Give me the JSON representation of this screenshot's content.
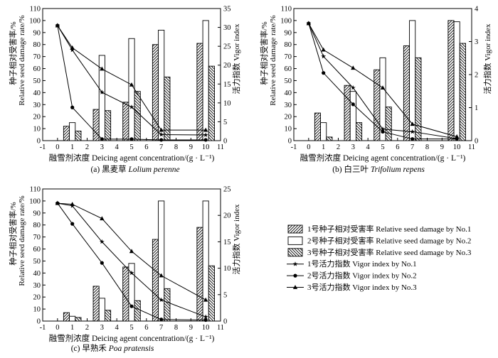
{
  "chart_data": [
    {
      "type": "bar",
      "id": "a",
      "caption": "(a) 黑麦草 Lolium perenne",
      "caption_plain": "(a) 黑麦草 ",
      "caption_italic": "Lolium perenne",
      "xlabel": "融雪剂浓度 Deicing agent concentration/(g · L⁻¹)",
      "ylabel_left_cn": "种子相对受害率/%",
      "ylabel_left_en": "Relative seed damage rate/%",
      "ylabel_right": "活力指数 Vigor index",
      "xlim": [
        -1,
        11
      ],
      "xticks": [
        "-1",
        "0",
        "1",
        "2",
        "3",
        "4",
        "5",
        "6",
        "7",
        "8",
        "9",
        "10",
        "11"
      ],
      "ylim_left": [
        0,
        110
      ],
      "yticks_left": [
        "0",
        "10",
        "20",
        "30",
        "40",
        "50",
        "60",
        "70",
        "80",
        "90",
        "100",
        "110"
      ],
      "ylim_right": [
        0,
        35
      ],
      "yticks_right": [
        "0",
        "5",
        "10",
        "15",
        "20",
        "25",
        "30",
        "35"
      ],
      "bar_x": [
        1,
        3,
        5,
        7,
        10
      ],
      "bars": [
        {
          "name": "No.1",
          "values": [
            12,
            26,
            32,
            80,
            81
          ]
        },
        {
          "name": "No.2",
          "values": [
            15,
            71,
            85,
            92,
            100
          ]
        },
        {
          "name": "No.3",
          "values": [
            8,
            25,
            41,
            53,
            62
          ]
        }
      ],
      "line_x": [
        0,
        1,
        3,
        5,
        7,
        10
      ],
      "lines": [
        {
          "name": "No.1",
          "values": [
            30.5,
            24.0,
            12.8,
            8.9,
            1.6,
            1.5
          ]
        },
        {
          "name": "No.2",
          "values": [
            30.5,
            8.8,
            0.4,
            0.4,
            0.2,
            0.2
          ]
        },
        {
          "name": "No.3",
          "values": [
            30.5,
            24.6,
            19.0,
            14.8,
            2.8,
            2.8
          ]
        }
      ]
    },
    {
      "type": "bar",
      "id": "b",
      "caption": "(b) 白三叶 Trifolium repens",
      "caption_plain": "(b) 白三叶 ",
      "caption_italic": "Trifolium repens",
      "xlabel": "融雪剂浓度 Deicing agent concentration/(g · L⁻¹)",
      "ylabel_left_cn": "种子相对受害率/%",
      "ylabel_left_en": "Relative seed damage rate/%",
      "ylabel_right": "活力指数 Vigor index",
      "xlim": [
        -1,
        11
      ],
      "xticks": [
        "-1",
        "0",
        "1",
        "2",
        "3",
        "4",
        "5",
        "6",
        "7",
        "8",
        "9",
        "10",
        "11"
      ],
      "ylim_left": [
        0,
        110
      ],
      "yticks_left": [
        "0",
        "10",
        "20",
        "30",
        "40",
        "50",
        "60",
        "70",
        "80",
        "90",
        "100",
        "110"
      ],
      "ylim_right": [
        0,
        4
      ],
      "yticks_right": [
        "0",
        "1",
        "2",
        "3",
        "4"
      ],
      "bar_x": [
        1,
        3,
        5,
        7,
        10
      ],
      "bars": [
        {
          "name": "No.1",
          "values": [
            23,
            46,
            59,
            79,
            100
          ]
        },
        {
          "name": "No.2",
          "values": [
            15,
            41,
            69,
            100,
            99
          ]
        },
        {
          "name": "No.3",
          "values": [
            3,
            15,
            28,
            69,
            81
          ]
        }
      ],
      "line_x": [
        0,
        1,
        3,
        5,
        7,
        10
      ],
      "lines": [
        {
          "name": "No.1",
          "values": [
            3.55,
            2.55,
            1.6,
            0.35,
            0.27,
            0.06
          ]
        },
        {
          "name": "No.2",
          "values": [
            3.55,
            2.05,
            1.1,
            0.27,
            0.05,
            0.05
          ]
        },
        {
          "name": "No.3",
          "values": [
            3.55,
            2.75,
            2.2,
            1.6,
            0.5,
            0.12
          ]
        }
      ]
    },
    {
      "type": "bar",
      "id": "c",
      "caption": "(c) 早熟禾 Poa pratensis",
      "caption_plain": "(c) 早熟禾 ",
      "caption_italic": "Poa pratensis",
      "xlabel": "融雪剂浓度 Deicing agent concentration/(g · L⁻¹)",
      "ylabel_left_cn": "种子相对受害率/%",
      "ylabel_left_en": "Relative seed damage rate/%",
      "ylabel_right": "活力指数 Vigor index",
      "xlim": [
        -1,
        11
      ],
      "xticks": [
        "-1",
        "0",
        "1",
        "2",
        "3",
        "4",
        "5",
        "6",
        "7",
        "8",
        "9",
        "10",
        "11"
      ],
      "ylim_left": [
        0,
        110
      ],
      "yticks_left": [
        "0",
        "10",
        "20",
        "30",
        "40",
        "50",
        "60",
        "70",
        "80",
        "90",
        "100",
        "110"
      ],
      "ylim_right": [
        0,
        25
      ],
      "yticks_right": [
        "0",
        "5",
        "10",
        "15",
        "20",
        "25"
      ],
      "bar_x": [
        1,
        3,
        5,
        7,
        10
      ],
      "bars": [
        {
          "name": "No.1",
          "values": [
            7,
            29,
            45,
            68,
            78
          ]
        },
        {
          "name": "No.2",
          "values": [
            4,
            19,
            48,
            100,
            100
          ]
        },
        {
          "name": "No.3",
          "values": [
            3,
            9,
            17,
            27,
            46
          ]
        }
      ],
      "line_x": [
        0,
        1,
        3,
        5,
        7,
        10
      ],
      "lines": [
        {
          "name": "No.1",
          "values": [
            22.3,
            21.8,
            15.0,
            9.1,
            4.0,
            0.8
          ]
        },
        {
          "name": "No.2",
          "values": [
            22.3,
            18.4,
            11.0,
            2.8,
            0.3,
            0.2
          ]
        },
        {
          "name": "No.3",
          "values": [
            22.3,
            22.1,
            19.4,
            13.2,
            8.6,
            4.0
          ]
        }
      ]
    }
  ],
  "legend": [
    {
      "kind": "bar",
      "pattern": "hatch-right",
      "label": "1号种子相对受害率 Relative seed damage by No.1"
    },
    {
      "kind": "bar",
      "pattern": "open",
      "label": "2号种子相对受害率 Relative seed damage by No.2"
    },
    {
      "kind": "bar",
      "pattern": "hatch-left",
      "label": "3号种子相对受害率 Relative seed damage by No.3"
    },
    {
      "kind": "line",
      "marker": "star",
      "label": "1号活力指数 Vigor index by No.1"
    },
    {
      "kind": "line",
      "marker": "circle",
      "label": "2号活力指数 Vigor index by No.2"
    },
    {
      "kind": "line",
      "marker": "triangle",
      "label": "3号活力指数 Vigor index by No.3"
    }
  ]
}
